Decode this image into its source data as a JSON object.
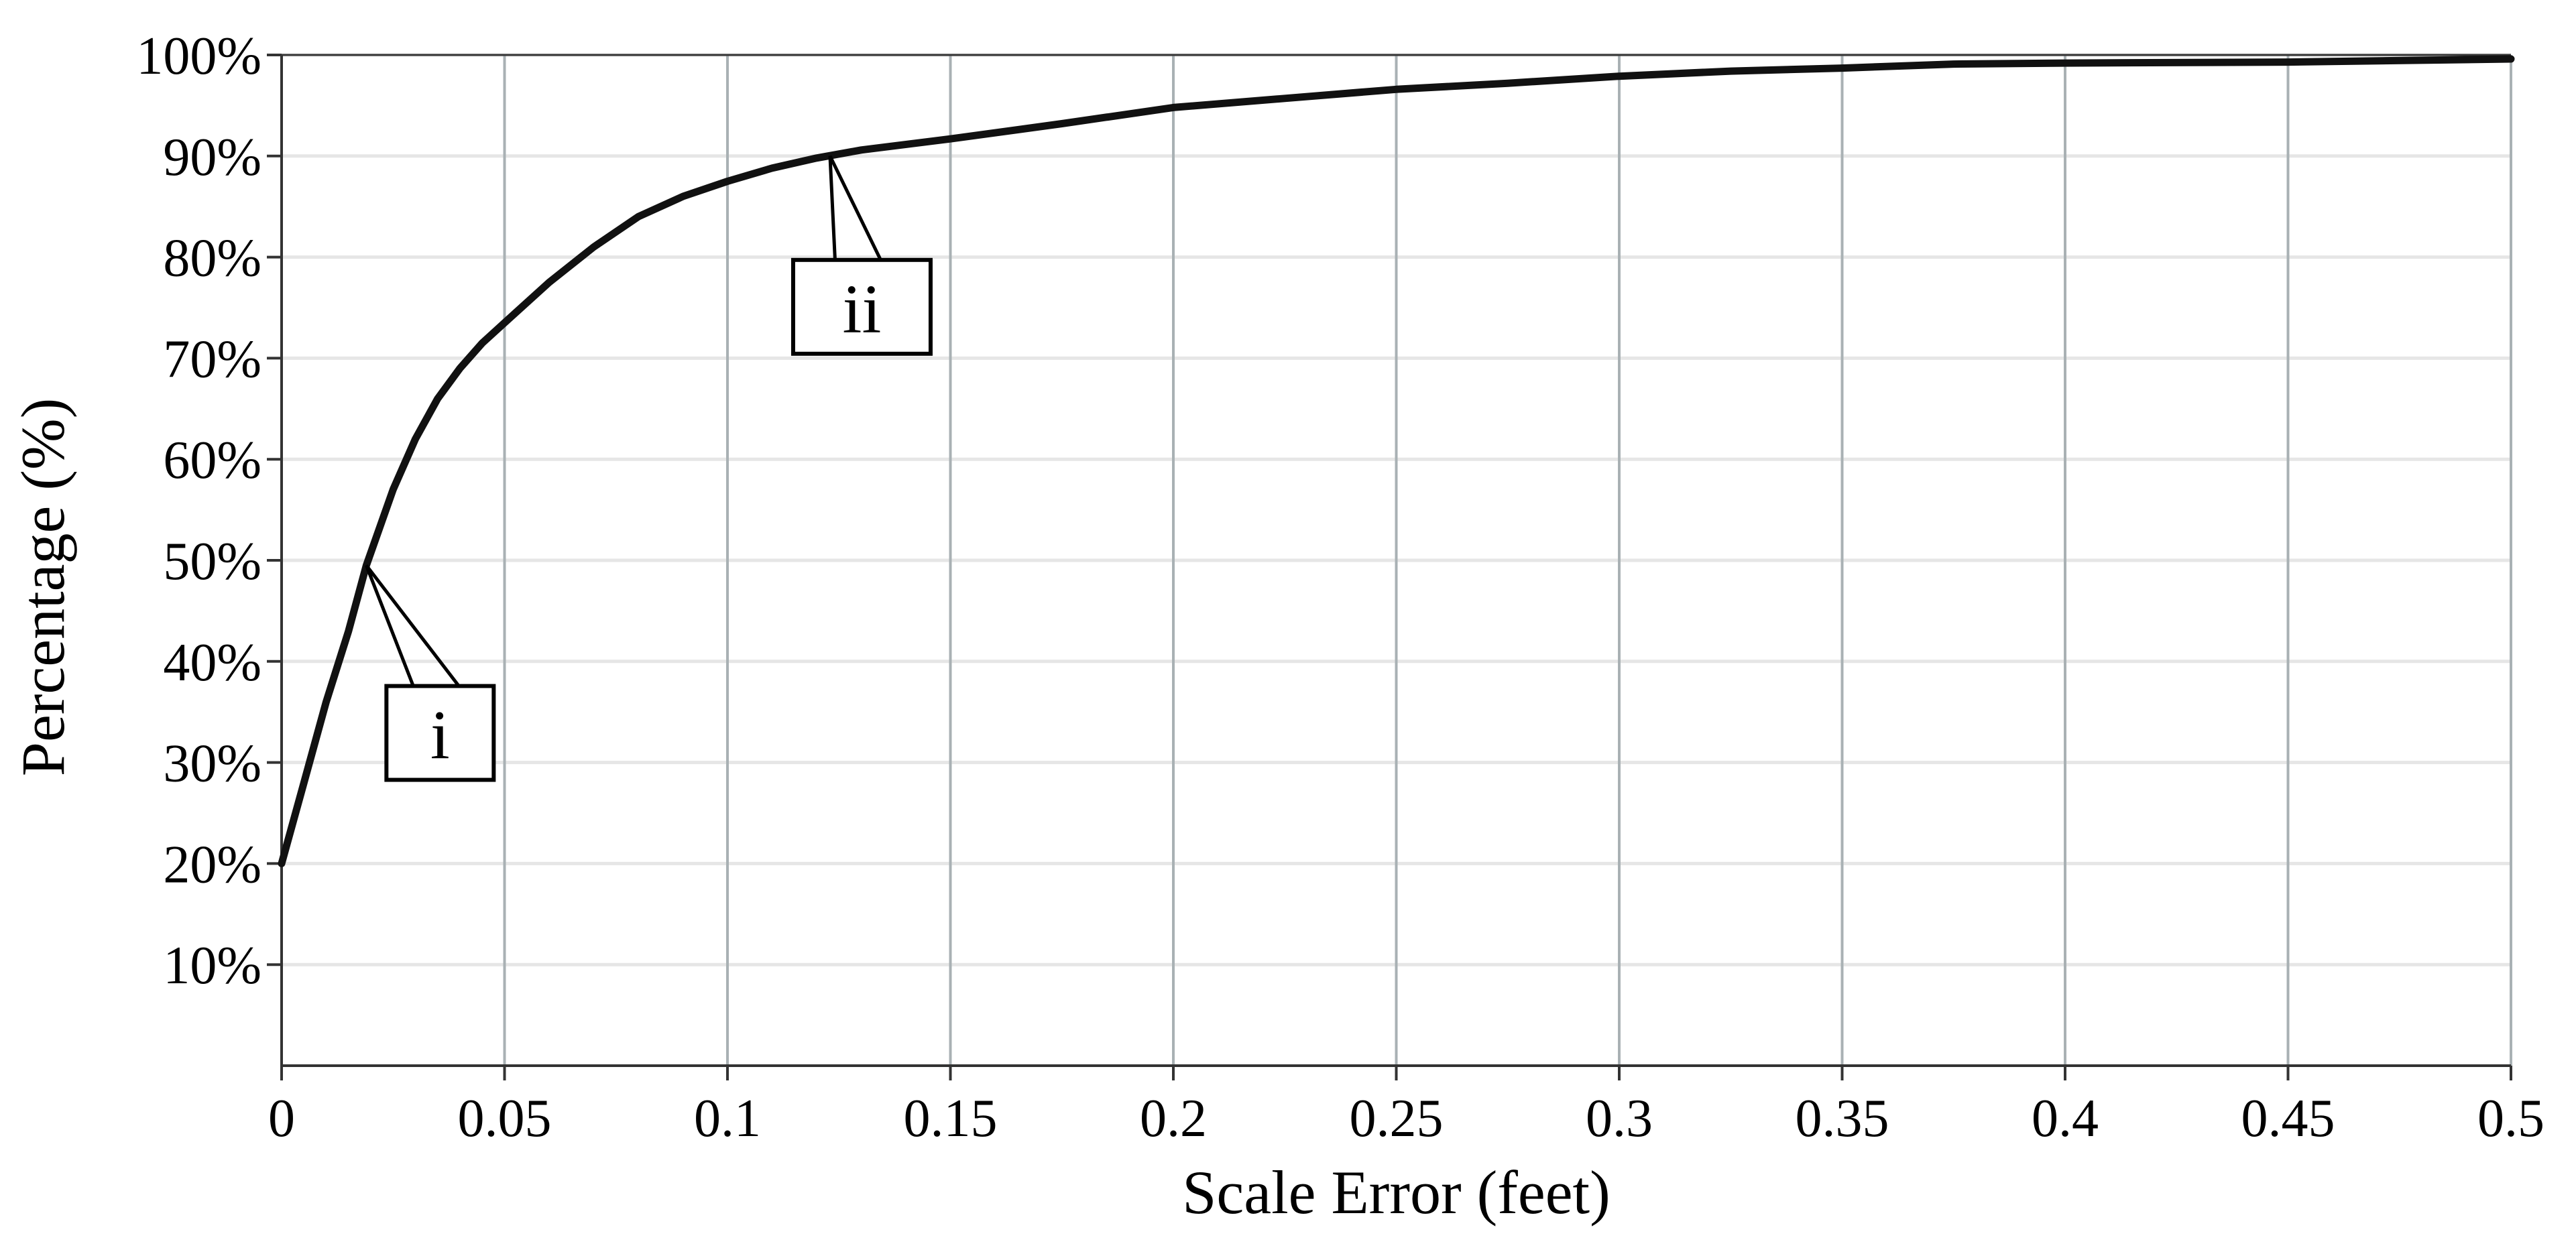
{
  "chart_data": {
    "type": "line",
    "title": "",
    "xlabel": "Scale Error (feet)",
    "ylabel": "Percentage (%)",
    "xlim": [
      0,
      0.5
    ],
    "ylim": [
      0,
      100
    ],
    "x_ticks": [
      0,
      0.05,
      0.1,
      0.15,
      0.2,
      0.25,
      0.3,
      0.35,
      0.4,
      0.45,
      0.5
    ],
    "x_tick_labels": [
      "0",
      "0.05",
      "0.1",
      "0.15",
      "0.2",
      "0.25",
      "0.3",
      "0.35",
      "0.4",
      "0.45",
      "0.5"
    ],
    "y_ticks": [
      10,
      20,
      30,
      40,
      50,
      60,
      70,
      80,
      90,
      100
    ],
    "y_tick_labels": [
      "10%",
      "20%",
      "30%",
      "40%",
      "50%",
      "60%",
      "70%",
      "80%",
      "90%",
      "100%"
    ],
    "grid": {
      "vertical": true,
      "horizontal": true
    },
    "legend": "none",
    "series": [
      {
        "color": "#111111",
        "points": [
          [
            0,
            20
          ],
          [
            0.005,
            28
          ],
          [
            0.01,
            36
          ],
          [
            0.015,
            43
          ],
          [
            0.019,
            49.5
          ],
          [
            0.025,
            57
          ],
          [
            0.03,
            62
          ],
          [
            0.035,
            66
          ],
          [
            0.04,
            69
          ],
          [
            0.045,
            71.5
          ],
          [
            0.05,
            73.5
          ],
          [
            0.06,
            77.5
          ],
          [
            0.07,
            81
          ],
          [
            0.08,
            84
          ],
          [
            0.09,
            86
          ],
          [
            0.1,
            87.5
          ],
          [
            0.11,
            88.8
          ],
          [
            0.12,
            89.8
          ],
          [
            0.13,
            90.6
          ],
          [
            0.15,
            91.7
          ],
          [
            0.175,
            93.2
          ],
          [
            0.2,
            94.8
          ],
          [
            0.225,
            95.7
          ],
          [
            0.25,
            96.6
          ],
          [
            0.275,
            97.2
          ],
          [
            0.3,
            97.9
          ],
          [
            0.325,
            98.4
          ],
          [
            0.35,
            98.7
          ],
          [
            0.375,
            99.1
          ],
          [
            0.4,
            99.2
          ],
          [
            0.45,
            99.3
          ],
          [
            0.5,
            99.6
          ]
        ]
      }
    ],
    "annotations": [
      {
        "label": "i",
        "x": 0.019,
        "y": 49.5
      },
      {
        "label": "ii",
        "x": 0.123,
        "y": 90
      }
    ]
  }
}
